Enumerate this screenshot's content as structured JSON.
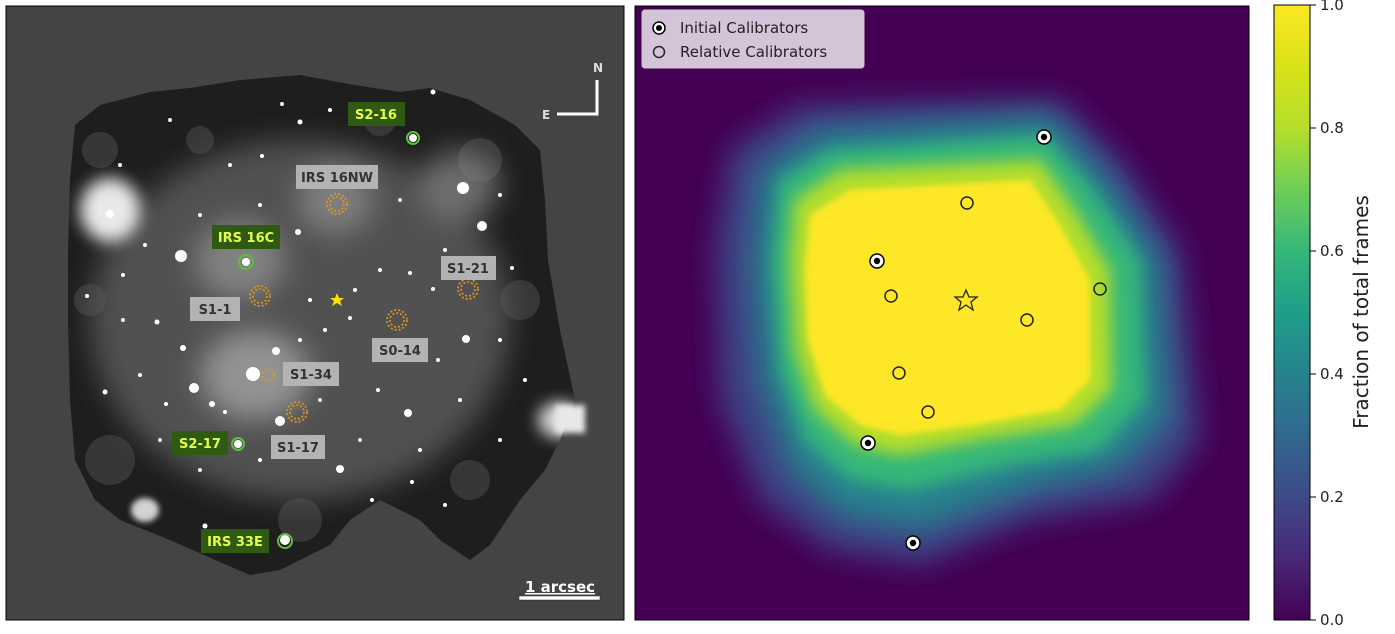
{
  "left_panel": {
    "compass": {
      "north": "N",
      "east": "E"
    },
    "scalebar_label": "1 arcsec",
    "star_labels": [
      {
        "text": "S2-16",
        "group": "calibrator"
      },
      {
        "text": "IRS 16NW",
        "group": "other"
      },
      {
        "text": "IRS 16C",
        "group": "calibrator"
      },
      {
        "text": "S1-21",
        "group": "other"
      },
      {
        "text": "S1-1",
        "group": "other"
      },
      {
        "text": "S0-14",
        "group": "other"
      },
      {
        "text": "S1-34",
        "group": "other"
      },
      {
        "text": "S2-17",
        "group": "calibrator"
      },
      {
        "text": "S1-17",
        "group": "other"
      },
      {
        "text": "IRS 33E",
        "group": "calibrator"
      }
    ]
  },
  "right_panel": {
    "legend": {
      "initial_label": "Initial Calibrators",
      "relative_label": "Relative Calibrators"
    }
  },
  "chart_data": {
    "type": "heatmap",
    "colormap": "viridis",
    "colorbar": {
      "label": "Fraction of total frames",
      "range": [
        0.0,
        1.0
      ],
      "ticks": [
        "0.0",
        "0.2",
        "0.4",
        "0.6",
        "0.8",
        "1.0"
      ]
    },
    "legend_placement": "top-left",
    "colors": {
      "label_green": "#2f5a12",
      "label_gray": "#b3b3b3",
      "ring_green": "#5fbf3a",
      "ring_orange": "#e69a1c"
    }
  }
}
